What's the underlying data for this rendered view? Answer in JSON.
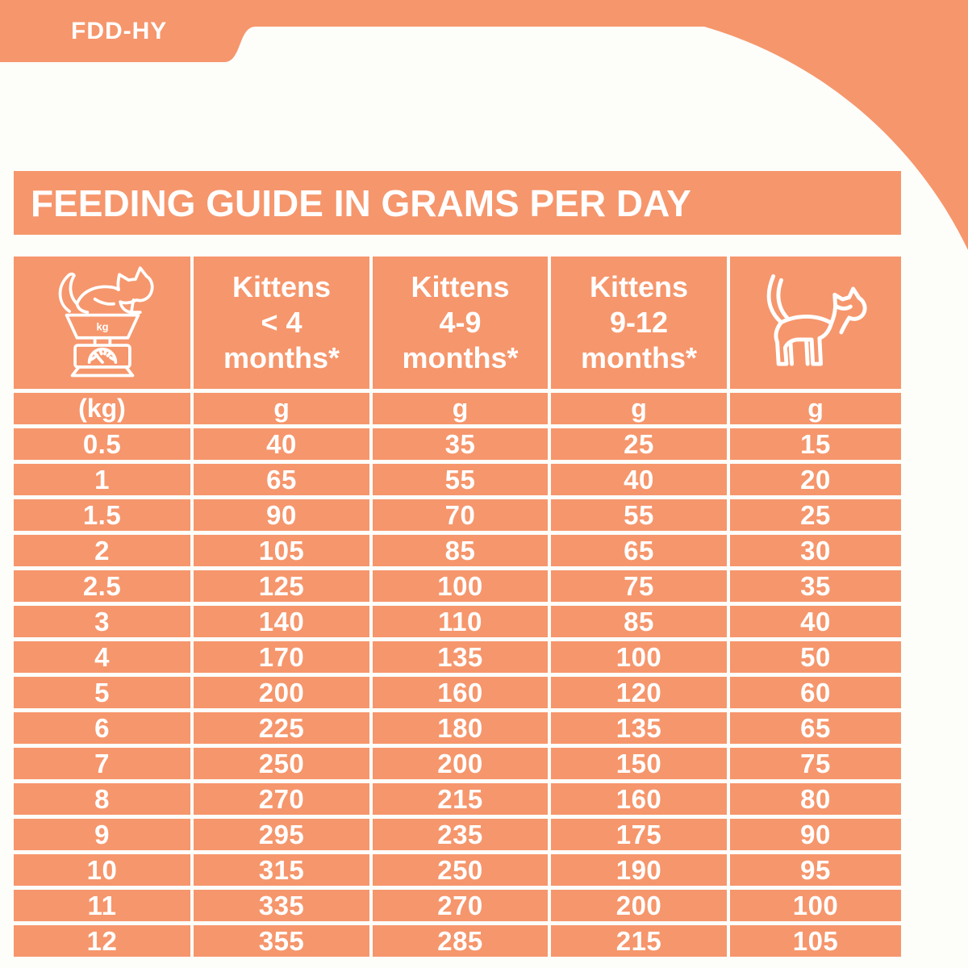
{
  "page": {
    "product_code": "FDD-HY",
    "title": "FEEDING GUIDE IN GRAMS PER DAY",
    "colors": {
      "accent": "#F6966C",
      "text_on_accent": "#FFFFFF",
      "background": "#FDFDFA"
    }
  },
  "table": {
    "columns": [
      {
        "icon": "cat-on-scale-icon",
        "scale_unit_label": "kg",
        "unit": "(kg)"
      },
      {
        "label": "Kittens\n< 4\nmonths*",
        "unit": "g"
      },
      {
        "label": "Kittens\n4-9\nmonths*",
        "unit": "g"
      },
      {
        "label": "Kittens\n9-12\nmonths*",
        "unit": "g"
      },
      {
        "icon": "standing-cat-icon",
        "unit": "g"
      }
    ],
    "rows": [
      [
        "0.5",
        "40",
        "35",
        "25",
        "15"
      ],
      [
        "1",
        "65",
        "55",
        "40",
        "20"
      ],
      [
        "1.5",
        "90",
        "70",
        "55",
        "25"
      ],
      [
        "2",
        "105",
        "85",
        "65",
        "30"
      ],
      [
        "2.5",
        "125",
        "100",
        "75",
        "35"
      ],
      [
        "3",
        "140",
        "110",
        "85",
        "40"
      ],
      [
        "4",
        "170",
        "135",
        "100",
        "50"
      ],
      [
        "5",
        "200",
        "160",
        "120",
        "60"
      ],
      [
        "6",
        "225",
        "180",
        "135",
        "65"
      ],
      [
        "7",
        "250",
        "200",
        "150",
        "75"
      ],
      [
        "8",
        "270",
        "215",
        "160",
        "80"
      ],
      [
        "9",
        "295",
        "235",
        "175",
        "90"
      ],
      [
        "10",
        "315",
        "250",
        "190",
        "95"
      ],
      [
        "11",
        "335",
        "270",
        "200",
        "100"
      ],
      [
        "12",
        "355",
        "285",
        "215",
        "105"
      ]
    ]
  }
}
